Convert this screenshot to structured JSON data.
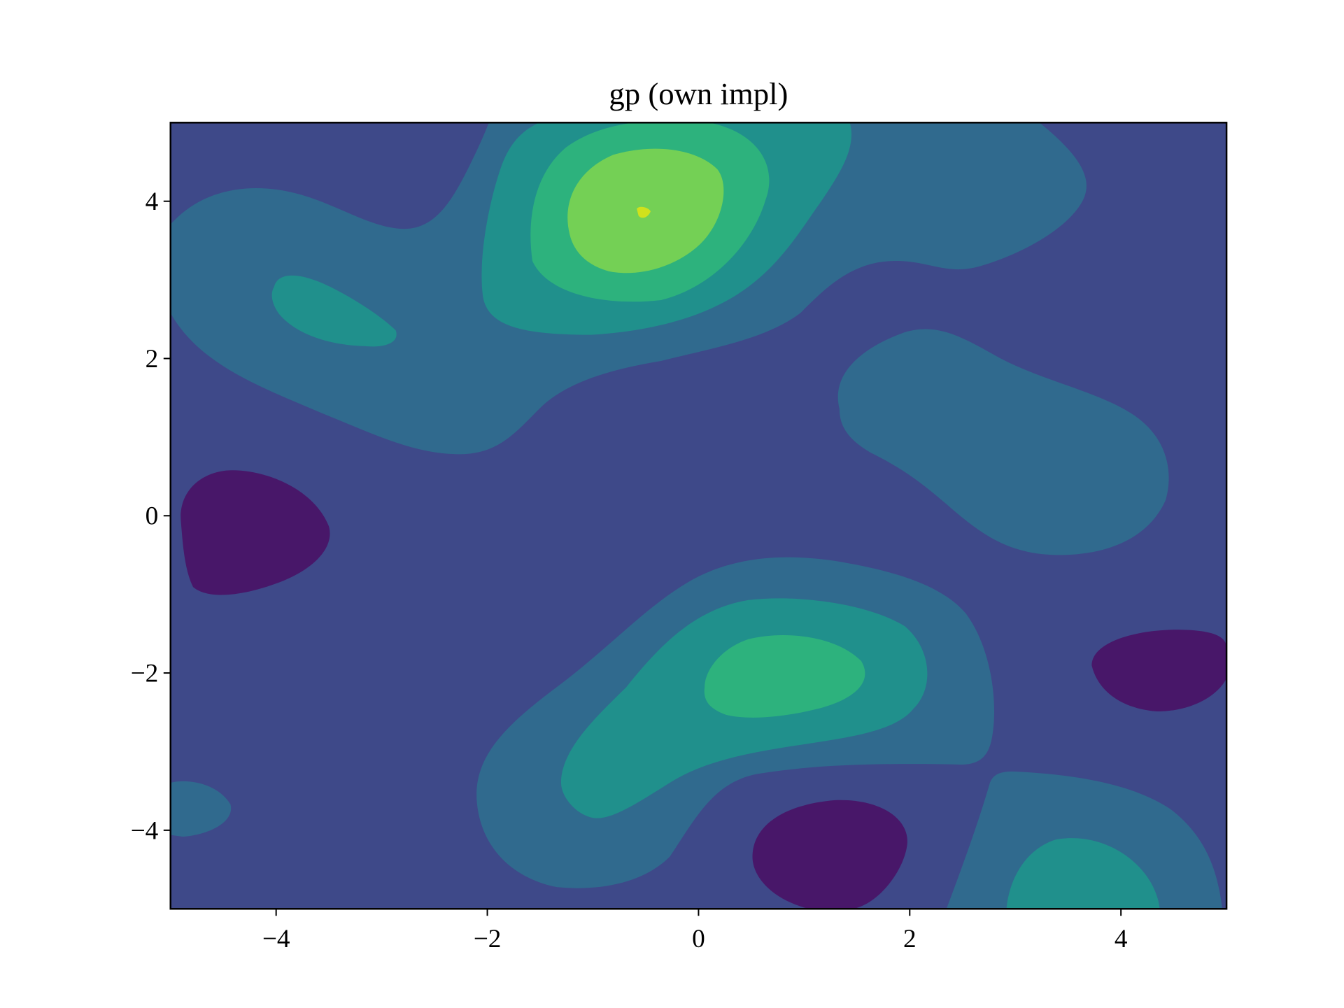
{
  "chart_data": {
    "type": "contourf",
    "title": "gp (own impl)",
    "xlim": [
      -5,
      5
    ],
    "ylim": [
      -5,
      5
    ],
    "xticks": [
      {
        "value": -4,
        "label": "−4"
      },
      {
        "value": -2,
        "label": "−2"
      },
      0,
      2,
      4
    ],
    "yticks": [
      {
        "value": -4,
        "label": "−4"
      },
      {
        "value": -2,
        "label": "−2"
      },
      0,
      2,
      4
    ],
    "level_colors": [
      "#481769",
      "#3e4989",
      "#306a8e",
      "#20908c",
      "#2db27d",
      "#74d055",
      "#d0e11c"
    ]
  }
}
